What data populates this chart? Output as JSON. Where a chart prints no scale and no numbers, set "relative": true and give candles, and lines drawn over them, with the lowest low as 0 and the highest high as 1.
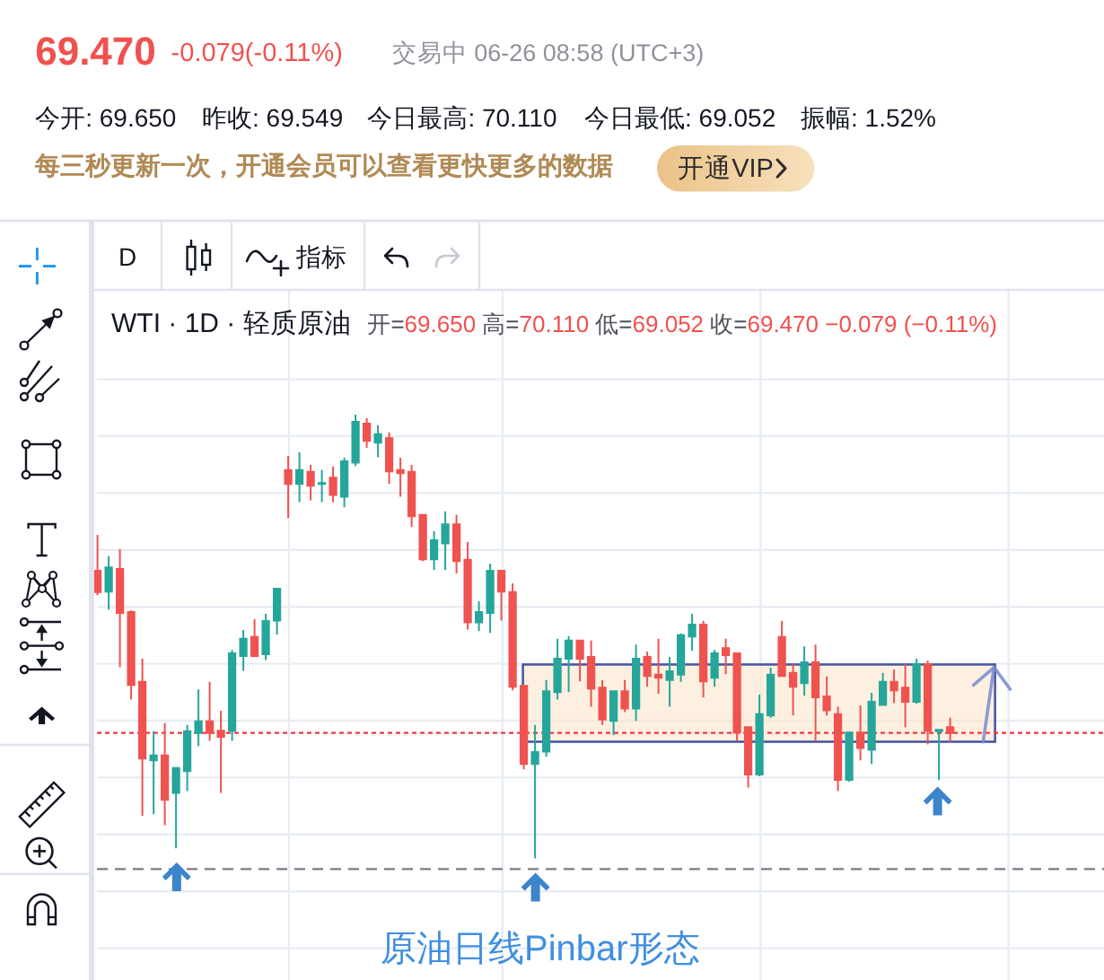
{
  "chart_data": {
    "type": "candlestick",
    "title": "WTI · 1D · 轻质原油",
    "subtitle": "开=69.650 高=70.110 低=69.052 收=69.470 −0.079 (−0.11%)",
    "annotations": [
      "69.470",
      "-0.079(-0.11%)",
      "交易中 06-26 08:58 (UTC+3)",
      "今开: 69.650",
      "昨收: 69.549",
      "今日最高: 70.110",
      "今日最低: 69.052",
      "振幅: 1.52%",
      "每三秒更新一次，开通会员可以查看更快更多的数据",
      "开通VIP",
      "D",
      "指标",
      "原油日线Pinbar形态"
    ],
    "relative": true,
    "grid": true,
    "categories": [
      null,
      null,
      null,
      null,
      null,
      null,
      null,
      null,
      null,
      null,
      null,
      null,
      null,
      null,
      null,
      null,
      null,
      null,
      null,
      null,
      null,
      null,
      null,
      null,
      null,
      null,
      null,
      null,
      null,
      null,
      null,
      null,
      null,
      null,
      null,
      null,
      null,
      null,
      null,
      null,
      null,
      null,
      null,
      null,
      null,
      null,
      null,
      null,
      null,
      null,
      null,
      null,
      null,
      null,
      null,
      null,
      null,
      null,
      null,
      null,
      null,
      null,
      null,
      null,
      null,
      null,
      null,
      null,
      null,
      null,
      null,
      null,
      null,
      null,
      null,
      null,
      null
    ],
    "ohlc": [
      [
        0.648,
        0.729,
        0.593,
        0.6
      ],
      [
        0.601,
        0.681,
        0.561,
        0.656
      ],
      [
        0.652,
        0.697,
        0.431,
        0.553
      ],
      [
        0.555,
        0.559,
        0.358,
        0.391
      ],
      [
        0.398,
        0.45,
        0.096,
        0.225
      ],
      [
        0.221,
        0.287,
        0.1,
        0.232
      ],
      [
        0.232,
        0.305,
        0.075,
        0.132
      ],
      [
        0.148,
        0.204,
        0.023,
        0.204
      ],
      [
        0.197,
        0.301,
        0.152,
        0.287
      ],
      [
        0.283,
        0.381,
        0.253,
        0.309
      ],
      [
        0.309,
        0.398,
        0.265,
        0.283
      ],
      [
        0.288,
        0.333,
        0.148,
        0.274
      ],
      [
        0.288,
        0.47,
        0.265,
        0.462
      ],
      [
        0.456,
        0.515,
        0.423,
        0.495
      ],
      [
        0.499,
        0.539,
        0.456,
        0.456
      ],
      [
        0.46,
        0.551,
        0.447,
        0.535
      ],
      [
        0.536,
        0.608,
        0.504,
        0.608
      ],
      [
        0.875,
        0.907,
        0.767,
        0.844
      ],
      [
        0.844,
        0.915,
        0.803,
        0.875
      ],
      [
        0.871,
        0.887,
        0.807,
        0.84
      ],
      [
        0.844,
        0.875,
        0.803,
        0.846
      ],
      [
        0.858,
        0.883,
        0.803,
        0.819
      ],
      [
        0.815,
        0.903,
        0.791,
        0.895
      ],
      [
        0.892,
        1.0,
        0.884,
        0.984
      ],
      [
        0.98,
        0.992,
        0.925,
        0.941
      ],
      [
        0.937,
        0.976,
        0.904,
        0.956
      ],
      [
        0.947,
        0.96,
        0.844,
        0.872
      ],
      [
        0.875,
        0.903,
        0.815,
        0.868
      ],
      [
        0.871,
        0.887,
        0.747,
        0.771
      ],
      [
        0.774,
        0.774,
        0.67,
        0.674
      ],
      [
        0.674,
        0.737,
        0.65,
        0.717
      ],
      [
        0.71,
        0.782,
        0.65,
        0.753
      ],
      [
        0.753,
        0.774,
        0.642,
        0.67
      ],
      [
        0.673,
        0.713,
        0.516,
        0.532
      ],
      [
        0.532,
        0.58,
        0.512,
        0.555
      ],
      [
        0.553,
        0.664,
        0.508,
        0.648
      ],
      [
        0.648,
        0.648,
        0.536,
        0.601
      ],
      [
        0.6,
        0.62,
        0.379,
        0.387
      ],
      [
        0.389,
        0.389,
        0.201,
        0.213
      ],
      [
        0.213,
        0.301,
        0,
        0.24
      ],
      [
        0.241,
        0.402,
        0.229,
        0.377
      ],
      [
        0.375,
        0.495,
        0.358,
        0.45
      ],
      [
        0.45,
        0.501,
        0.375,
        0.491
      ],
      [
        0.491,
        0.491,
        0.399,
        0.45
      ],
      [
        0.454,
        0.491,
        0.342,
        0.383
      ],
      [
        0.385,
        0.402,
        0.301,
        0.313
      ],
      [
        0.31,
        0.377,
        0.278,
        0.377
      ],
      [
        0.377,
        0.402,
        0.33,
        0.338
      ],
      [
        0.338,
        0.482,
        0.31,
        0.45
      ],
      [
        0.454,
        0.466,
        0.387,
        0.411
      ],
      [
        0.414,
        0.495,
        0.371,
        0.407
      ],
      [
        0.402,
        0.454,
        0.342,
        0.422
      ],
      [
        0.414,
        0.507,
        0.398,
        0.503
      ],
      [
        0.5,
        0.551,
        0.468,
        0.527
      ],
      [
        0.527,
        0.535,
        0.363,
        0.399
      ],
      [
        0.407,
        0.47,
        0.387,
        0.462
      ],
      [
        0.474,
        0.495,
        0.415,
        0.458
      ],
      [
        0.462,
        0.462,
        0.265,
        0.284
      ],
      [
        0.296,
        0.296,
        0.16,
        0.189
      ],
      [
        0.189,
        0.369,
        0.185,
        0.325
      ],
      [
        0.322,
        0.43,
        0.317,
        0.414
      ],
      [
        0.499,
        0.535,
        0.411,
        0.411
      ],
      [
        0.418,
        0.438,
        0.322,
        0.387
      ],
      [
        0.395,
        0.478,
        0.367,
        0.442
      ],
      [
        0.442,
        0.482,
        0.265,
        0.363
      ],
      [
        0.365,
        0.41,
        0.322,
        0.334
      ],
      [
        0.325,
        0.342,
        0.152,
        0.177
      ],
      [
        0.177,
        0.284,
        0.173,
        0.284
      ],
      [
        0.284,
        0.345,
        0.221,
        0.249
      ],
      [
        0.245,
        0.373,
        0.213,
        0.353
      ],
      [
        0.346,
        0.418,
        0.346,
        0.398
      ],
      [
        0.398,
        0.426,
        0.35,
        0.379
      ],
      [
        0.385,
        0.438,
        0.296,
        0.353
      ],
      [
        0.353,
        0.45,
        0.349,
        0.438
      ],
      [
        0.438,
        0.446,
        0.257,
        0.288
      ],
      [
        0.287,
        0.292,
        0.177,
        0.29
      ],
      [
        0.296,
        0.317,
        0.263,
        0.283
      ]
    ],
    "colors": [
      "#ef5350",
      "#26a69a",
      "#ef5350",
      "#ef5350",
      "#ef5350",
      "#26a69a",
      "#ef5350",
      "#26a69a",
      "#26a69a",
      "#26a69a",
      "#ef5350",
      "#ef5350",
      "#26a69a",
      "#26a69a",
      "#ef5350",
      "#26a69a",
      "#26a69a",
      "#ef5350",
      "#26a69a",
      "#ef5350",
      "#26a69a",
      "#ef5350",
      "#26a69a",
      "#26a69a",
      "#ef5350",
      "#26a69a",
      "#ef5350",
      "#ef5350",
      "#ef5350",
      "#ef5350",
      "#26a69a",
      "#26a69a",
      "#ef5350",
      "#ef5350",
      "#26a69a",
      "#26a69a",
      "#ef5350",
      "#ef5350",
      "#ef5350",
      "#26a69a",
      "#26a69a",
      "#26a69a",
      "#26a69a",
      "#ef5350",
      "#ef5350",
      "#ef5350",
      "#26a69a",
      "#ef5350",
      "#26a69a",
      "#ef5350",
      "#ef5350",
      "#26a69a",
      "#26a69a",
      "#26a69a",
      "#ef5350",
      "#26a69a",
      "#ef5350",
      "#ef5350",
      "#ef5350",
      "#26a69a",
      "#26a69a",
      "#ef5350",
      "#ef5350",
      "#26a69a",
      "#ef5350",
      "#ef5350",
      "#ef5350",
      "#26a69a",
      "#ef5350",
      "#26a69a",
      "#26a69a",
      "#ef5350",
      "#ef5350",
      "#26a69a",
      "#ef5350",
      "#26a69a",
      "#ef5350"
    ],
    "ref_lines": [
      {
        "axis": "y",
        "value": 0.283,
        "color": "#f23645",
        "line_style": "dotted"
      },
      {
        "axis": "y",
        "value": -0.024,
        "color": "#787b86",
        "line_style": "dashed"
      }
    ],
    "bands": [
      {
        "axis": "y",
        "from": 0.263,
        "to": 0.437,
        "color": "#fbe6cc"
      }
    ]
  }
}
